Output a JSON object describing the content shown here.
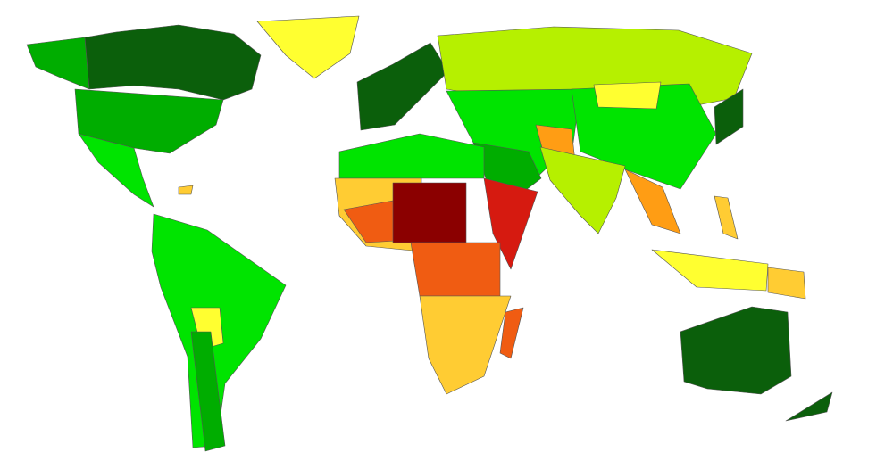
{
  "map": {
    "palette": [
      "#0b5f0b",
      "#00ad00",
      "#00e400",
      "#b6f000",
      "#ffff30",
      "#ffcc33",
      "#ff9d14",
      "#f05c12",
      "#d61a10",
      "#8b0000"
    ]
  }
}
